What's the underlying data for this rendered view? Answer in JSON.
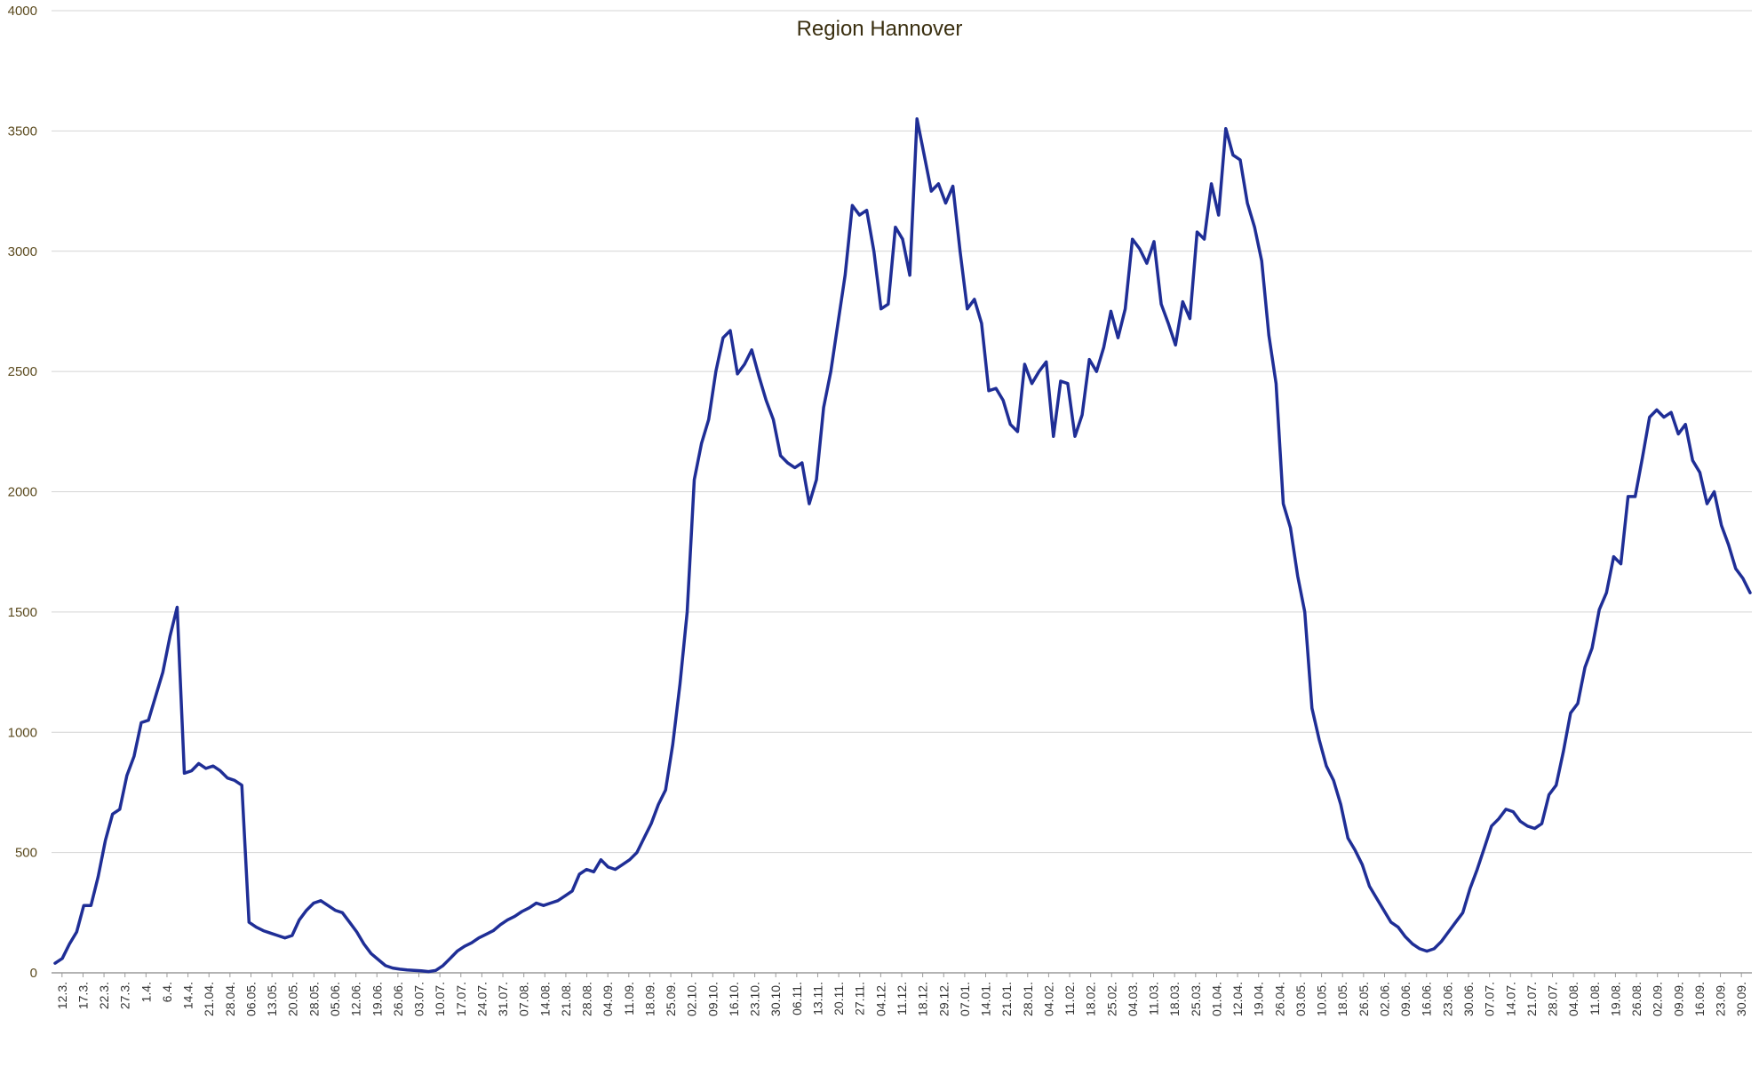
{
  "chart_data": {
    "type": "line",
    "title": "Region Hannover",
    "xlabel": "",
    "ylabel": "",
    "ylim": [
      0,
      4000
    ],
    "yticks": [
      0,
      500,
      1000,
      1500,
      2000,
      2500,
      3000,
      3500,
      4000
    ],
    "grid": true,
    "legend": "none",
    "line_color": "#1f2e96",
    "x_tick_labels": [
      "12.3.",
      "17.3.",
      "22.3.",
      "27.3.",
      "1.4.",
      "6.4.",
      "14.4.",
      "21.04.",
      "28.04.",
      "06.05.",
      "13.05.",
      "20.05.",
      "28.05.",
      "05.06.",
      "12.06.",
      "19.06.",
      "26.06.",
      "03.07.",
      "10.07.",
      "17.07.",
      "24.07.",
      "31.07.",
      "07.08.",
      "14.08.",
      "21.08.",
      "28.08.",
      "04.09.",
      "11.09.",
      "18.09.",
      "25.09.",
      "02.10.",
      "09.10.",
      "16.10.",
      "23.10.",
      "30.10.",
      "06.11.",
      "13.11.",
      "20.11.",
      "27.11.",
      "04.12.",
      "11.12.",
      "18.12.",
      "29.12.",
      "07.01.",
      "14.01.",
      "21.01.",
      "28.01.",
      "04.02.",
      "11.02.",
      "18.02.",
      "25.02.",
      "04.03.",
      "11.03.",
      "18.03.",
      "25.03.",
      "01.04.",
      "12.04.",
      "19.04.",
      "26.04.",
      "03.05.",
      "10.05.",
      "18.05.",
      "26.05.",
      "02.06.",
      "09.06.",
      "16.06.",
      "23.06.",
      "30.06.",
      "07.07.",
      "14.07.",
      "21.07.",
      "28.07.",
      "04.08.",
      "11.08.",
      "19.08.",
      "26.08.",
      "02.09.",
      "09.09.",
      "16.09.",
      "23.09.",
      "30.09."
    ],
    "series": [
      {
        "values": [
          40,
          60,
          120,
          170,
          280,
          280,
          400,
          550,
          660,
          680,
          820,
          900,
          1040,
          1050,
          1150,
          1250,
          1400,
          1520,
          830,
          840,
          870,
          850,
          860,
          840,
          810,
          800,
          780,
          210,
          190,
          175,
          165,
          155,
          145,
          155,
          220,
          260,
          290,
          300,
          280,
          260,
          250,
          210,
          170,
          120,
          80,
          55,
          30,
          20,
          15,
          12,
          10,
          8,
          5,
          10,
          30,
          60,
          90,
          110,
          125,
          145,
          160,
          175,
          200,
          220,
          235,
          255,
          270,
          290,
          280,
          290,
          300,
          320,
          340,
          410,
          430,
          420,
          470,
          440,
          430,
          450,
          470,
          500,
          560,
          620,
          700,
          760,
          950,
          1200,
          1500,
          2050,
          2200,
          2300,
          2500,
          2640,
          2670,
          2490,
          2530,
          2590,
          2480,
          2380,
          2300,
          2150,
          2120,
          2100,
          2120,
          1950,
          2050,
          2350,
          2500,
          2700,
          2900,
          3190,
          3150,
          3170,
          3000,
          2760,
          2780,
          3100,
          3050,
          2900,
          3550,
          3400,
          3250,
          3280,
          3200,
          3270,
          3000,
          2760,
          2800,
          2700,
          2420,
          2430,
          2380,
          2280,
          2250,
          2530,
          2450,
          2500,
          2540,
          2230,
          2460,
          2450,
          2230,
          2320,
          2550,
          2500,
          2600,
          2750,
          2640,
          2760,
          3050,
          3010,
          2950,
          3040,
          2780,
          2700,
          2610,
          2790,
          2720,
          3080,
          3050,
          3280,
          3150,
          3510,
          3400,
          3380,
          3200,
          3100,
          2960,
          2650,
          2450,
          1950,
          1850,
          1650,
          1500,
          1100,
          970,
          860,
          800,
          700,
          560,
          510,
          450,
          360,
          310,
          260,
          210,
          190,
          150,
          120,
          100,
          90,
          100,
          130,
          170,
          210,
          250,
          350,
          430,
          520,
          610,
          640,
          680,
          670,
          630,
          610,
          600,
          620,
          740,
          780,
          920,
          1080,
          1120,
          1270,
          1350,
          1510,
          1580,
          1730,
          1700,
          1980,
          1980,
          2140,
          2310,
          2340,
          2310,
          2330,
          2240,
          2280,
          2130,
          2080,
          1950,
          2000,
          1860,
          1780,
          1680,
          1640,
          1580
        ]
      }
    ]
  }
}
